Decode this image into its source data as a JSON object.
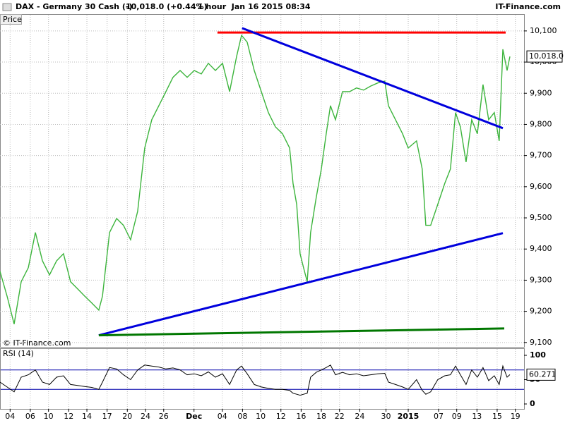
{
  "header": {
    "instrument": "DAX - Germany 30 Cash (-)",
    "quote": "10,018.0 (+0.44%)",
    "timeframe": "1 hour  Jan 16 2015 08:34",
    "source": "IT-Finance.com"
  },
  "chart_data": [
    {
      "type": "line",
      "panel_label": "Price",
      "watermark": "© IT-Finance.com",
      "color": "#3cb43c",
      "x": [
        0,
        3.5,
        7,
        10.5,
        14,
        17.5,
        21,
        24.5,
        28,
        31.4,
        34.9,
        38.4,
        41.9,
        45.4,
        48.9,
        50.7,
        54.2,
        57.7,
        61.1,
        64.6,
        68.1,
        71.6,
        75.1,
        78.6,
        82.1,
        85.6,
        89.1,
        92.6,
        96.1,
        99.6,
        103.1,
        106.6,
        110.1,
        113.6,
        117.1,
        119.5,
        122.3,
        125.8,
        129.3,
        132.8,
        136.3,
        139.8,
        143.3,
        145,
        146.8,
        148.5,
        150.2,
        152,
        153.7,
        156.5,
        159,
        161.4,
        163.5,
        166,
        169.5,
        173,
        176.4,
        179.9,
        183.4,
        186.9,
        190.4,
        192.2,
        195.7,
        199.2,
        202,
        206.1,
        208.9,
        210.7,
        213.1,
        216.6,
        220.1,
        222.9,
        225.4,
        227.8,
        230.6,
        233.4,
        236.2,
        239,
        241.8,
        244.6,
        247,
        248.8,
        250.9,
        252.3
      ],
      "values": [
        9328,
        9249,
        9159,
        9295,
        9340,
        9453,
        9362,
        9317,
        9362,
        9385,
        9295,
        9272,
        9249,
        9227,
        9204,
        9249,
        9453,
        9498,
        9476,
        9430,
        9521,
        9724,
        9815,
        9860,
        9905,
        9951,
        9973,
        9951,
        9973,
        9962,
        9996,
        9973,
        9996,
        9905,
        10019,
        10086,
        10064,
        9973,
        9905,
        9838,
        9792,
        9770,
        9724,
        9611,
        9543,
        9385,
        9340,
        9295,
        9453,
        9566,
        9657,
        9770,
        9860,
        9815,
        9905,
        9905,
        9917,
        9910,
        9923,
        9933,
        9939,
        9860,
        9815,
        9770,
        9724,
        9747,
        9657,
        9476,
        9476,
        9543,
        9611,
        9657,
        9838,
        9792,
        9679,
        9815,
        9770,
        9928,
        9815,
        9838,
        9747,
        10041,
        9973,
        10018
      ],
      "xlim": [
        0,
        260
      ],
      "ylim": [
        9086,
        10154
      ],
      "yticks": [
        {
          "value": 9100,
          "label": "9,100"
        },
        {
          "value": 9200,
          "label": "9,200"
        },
        {
          "value": 9300,
          "label": "9,300"
        },
        {
          "value": 9400,
          "label": "9,400"
        },
        {
          "value": 9500,
          "label": "9,500"
        },
        {
          "value": 9600,
          "label": "9,600"
        },
        {
          "value": 9700,
          "label": "9,700"
        },
        {
          "value": 9800,
          "label": "9,800"
        },
        {
          "value": 9900,
          "label": "9,900"
        },
        {
          "value": 10000,
          "label": "10,000"
        },
        {
          "value": 10100,
          "label": "10,100"
        }
      ],
      "xticks": [
        {
          "value": 5,
          "label": "04"
        },
        {
          "value": 15,
          "label": "06"
        },
        {
          "value": 24,
          "label": "10"
        },
        {
          "value": 34,
          "label": "12"
        },
        {
          "value": 43,
          "label": "14"
        },
        {
          "value": 53,
          "label": "17"
        },
        {
          "value": 63,
          "label": "20"
        },
        {
          "value": 72,
          "label": "24"
        },
        {
          "value": 81,
          "label": "26"
        },
        {
          "value": 96,
          "label": "Dec"
        },
        {
          "value": 110,
          "label": "04"
        },
        {
          "value": 120,
          "label": "08"
        },
        {
          "value": 129,
          "label": "10"
        },
        {
          "value": 139,
          "label": "12"
        },
        {
          "value": 149,
          "label": "16"
        },
        {
          "value": 159,
          "label": "18"
        },
        {
          "value": 168,
          "label": "22"
        },
        {
          "value": 178,
          "label": "24"
        },
        {
          "value": 191,
          "label": "30"
        },
        {
          "value": 202,
          "label": "2015"
        },
        {
          "value": 217,
          "label": "07"
        },
        {
          "value": 226,
          "label": "09"
        },
        {
          "value": 236,
          "label": "13"
        },
        {
          "value": 246,
          "label": "15"
        },
        {
          "value": 255,
          "label": "19"
        }
      ],
      "grid": true,
      "last_price": {
        "value": 10018.0,
        "label": "10,018.0"
      },
      "trendlines": [
        {
          "color": "#ff0000",
          "x": [
            107.6,
            250.2
          ],
          "values": [
            10095,
            10095
          ]
        },
        {
          "color": "#0000dd",
          "x": [
            119.8,
            248.8
          ],
          "values": [
            10109,
            9788
          ]
        },
        {
          "color": "#0000dd",
          "x": [
            48.9,
            248.8
          ],
          "values": [
            9123,
            9451
          ]
        },
        {
          "color": "#007700",
          "x": [
            48.9,
            249.5
          ],
          "values": [
            9123,
            9145
          ]
        }
      ]
    },
    {
      "type": "line",
      "panel_label": "RSI (14)",
      "color": "#000000",
      "values": [
        45,
        35,
        25,
        55,
        60,
        70,
        45,
        40,
        55,
        58,
        40,
        38,
        36,
        34,
        30,
        45,
        75,
        72,
        60,
        50,
        70,
        80,
        78,
        76,
        72,
        74,
        70,
        60,
        62,
        58,
        66,
        55,
        62,
        40,
        70,
        78,
        62,
        40,
        35,
        32,
        30,
        30,
        28,
        22,
        20,
        18,
        20,
        22,
        55,
        65,
        70,
        75,
        80,
        60,
        65,
        60,
        62,
        58,
        60,
        62,
        63,
        45,
        40,
        35,
        30,
        50,
        28,
        20,
        25,
        50,
        58,
        60,
        78,
        60,
        40,
        70,
        55,
        75,
        48,
        58,
        40,
        78,
        55,
        60.271
      ],
      "ylim": [
        0,
        100
      ],
      "yticks": [
        0,
        50,
        100
      ],
      "levels": [
        70,
        30
      ],
      "level_color": "#0000aa",
      "last_value": 60.271
    }
  ]
}
